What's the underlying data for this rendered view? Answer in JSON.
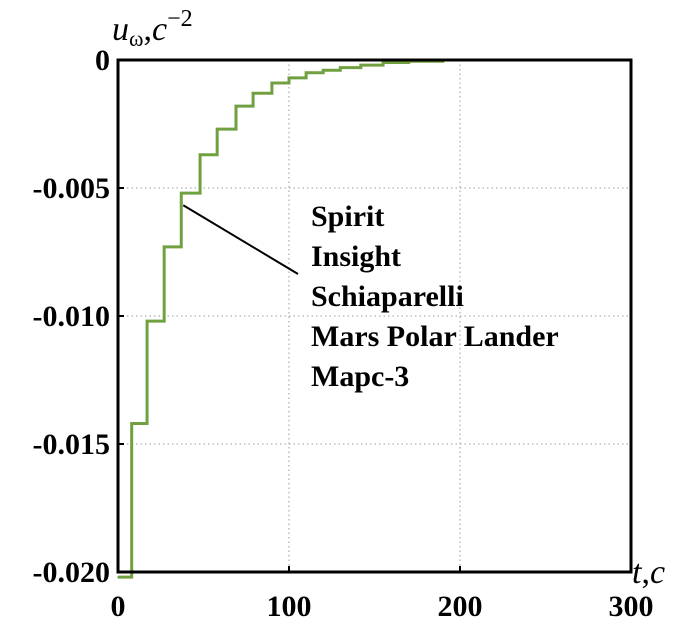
{
  "chart_data": {
    "type": "line",
    "title": "",
    "xlabel": {
      "main": "t",
      "sep": ",",
      "unit": "c"
    },
    "ylabel": {
      "main": "u",
      "sub": "ω",
      "sep": ",",
      "unit": "c",
      "exp": "−2"
    },
    "xlim": [
      0,
      300
    ],
    "ylim": [
      -0.02,
      0
    ],
    "xticks": [
      "0",
      "100",
      "200",
      "300"
    ],
    "yticks": [
      "0",
      "-0.005",
      "-0.010",
      "-0.015",
      "-0.020"
    ],
    "ytick_values": [
      0,
      -0.005,
      -0.01,
      -0.015,
      -0.02
    ],
    "xtick_values": [
      0,
      100,
      200,
      300
    ],
    "grid": true,
    "line_color": "#70a040",
    "series": [
      {
        "step": "post",
        "x": [
          0,
          8,
          17,
          27,
          37,
          48,
          58,
          69,
          79,
          90,
          100,
          110,
          120,
          130,
          142,
          155,
          170,
          190,
          300
        ],
        "values": [
          -0.0202,
          -0.0142,
          -0.0102,
          -0.0073,
          -0.0052,
          -0.0037,
          -0.0027,
          -0.0018,
          -0.0013,
          -0.0009,
          -0.0007,
          -0.0005,
          -0.0004,
          -0.0003,
          -0.0002,
          -0.0001,
          -5e-05,
          0,
          0
        ]
      }
    ],
    "annotation": {
      "lines": [
        "Spirit",
        "Insight",
        "Schiaparelli",
        "Mars Polar Lander",
        "Марс-3"
      ],
      "points_to": {
        "x": 37,
        "y": -0.0063
      }
    }
  }
}
